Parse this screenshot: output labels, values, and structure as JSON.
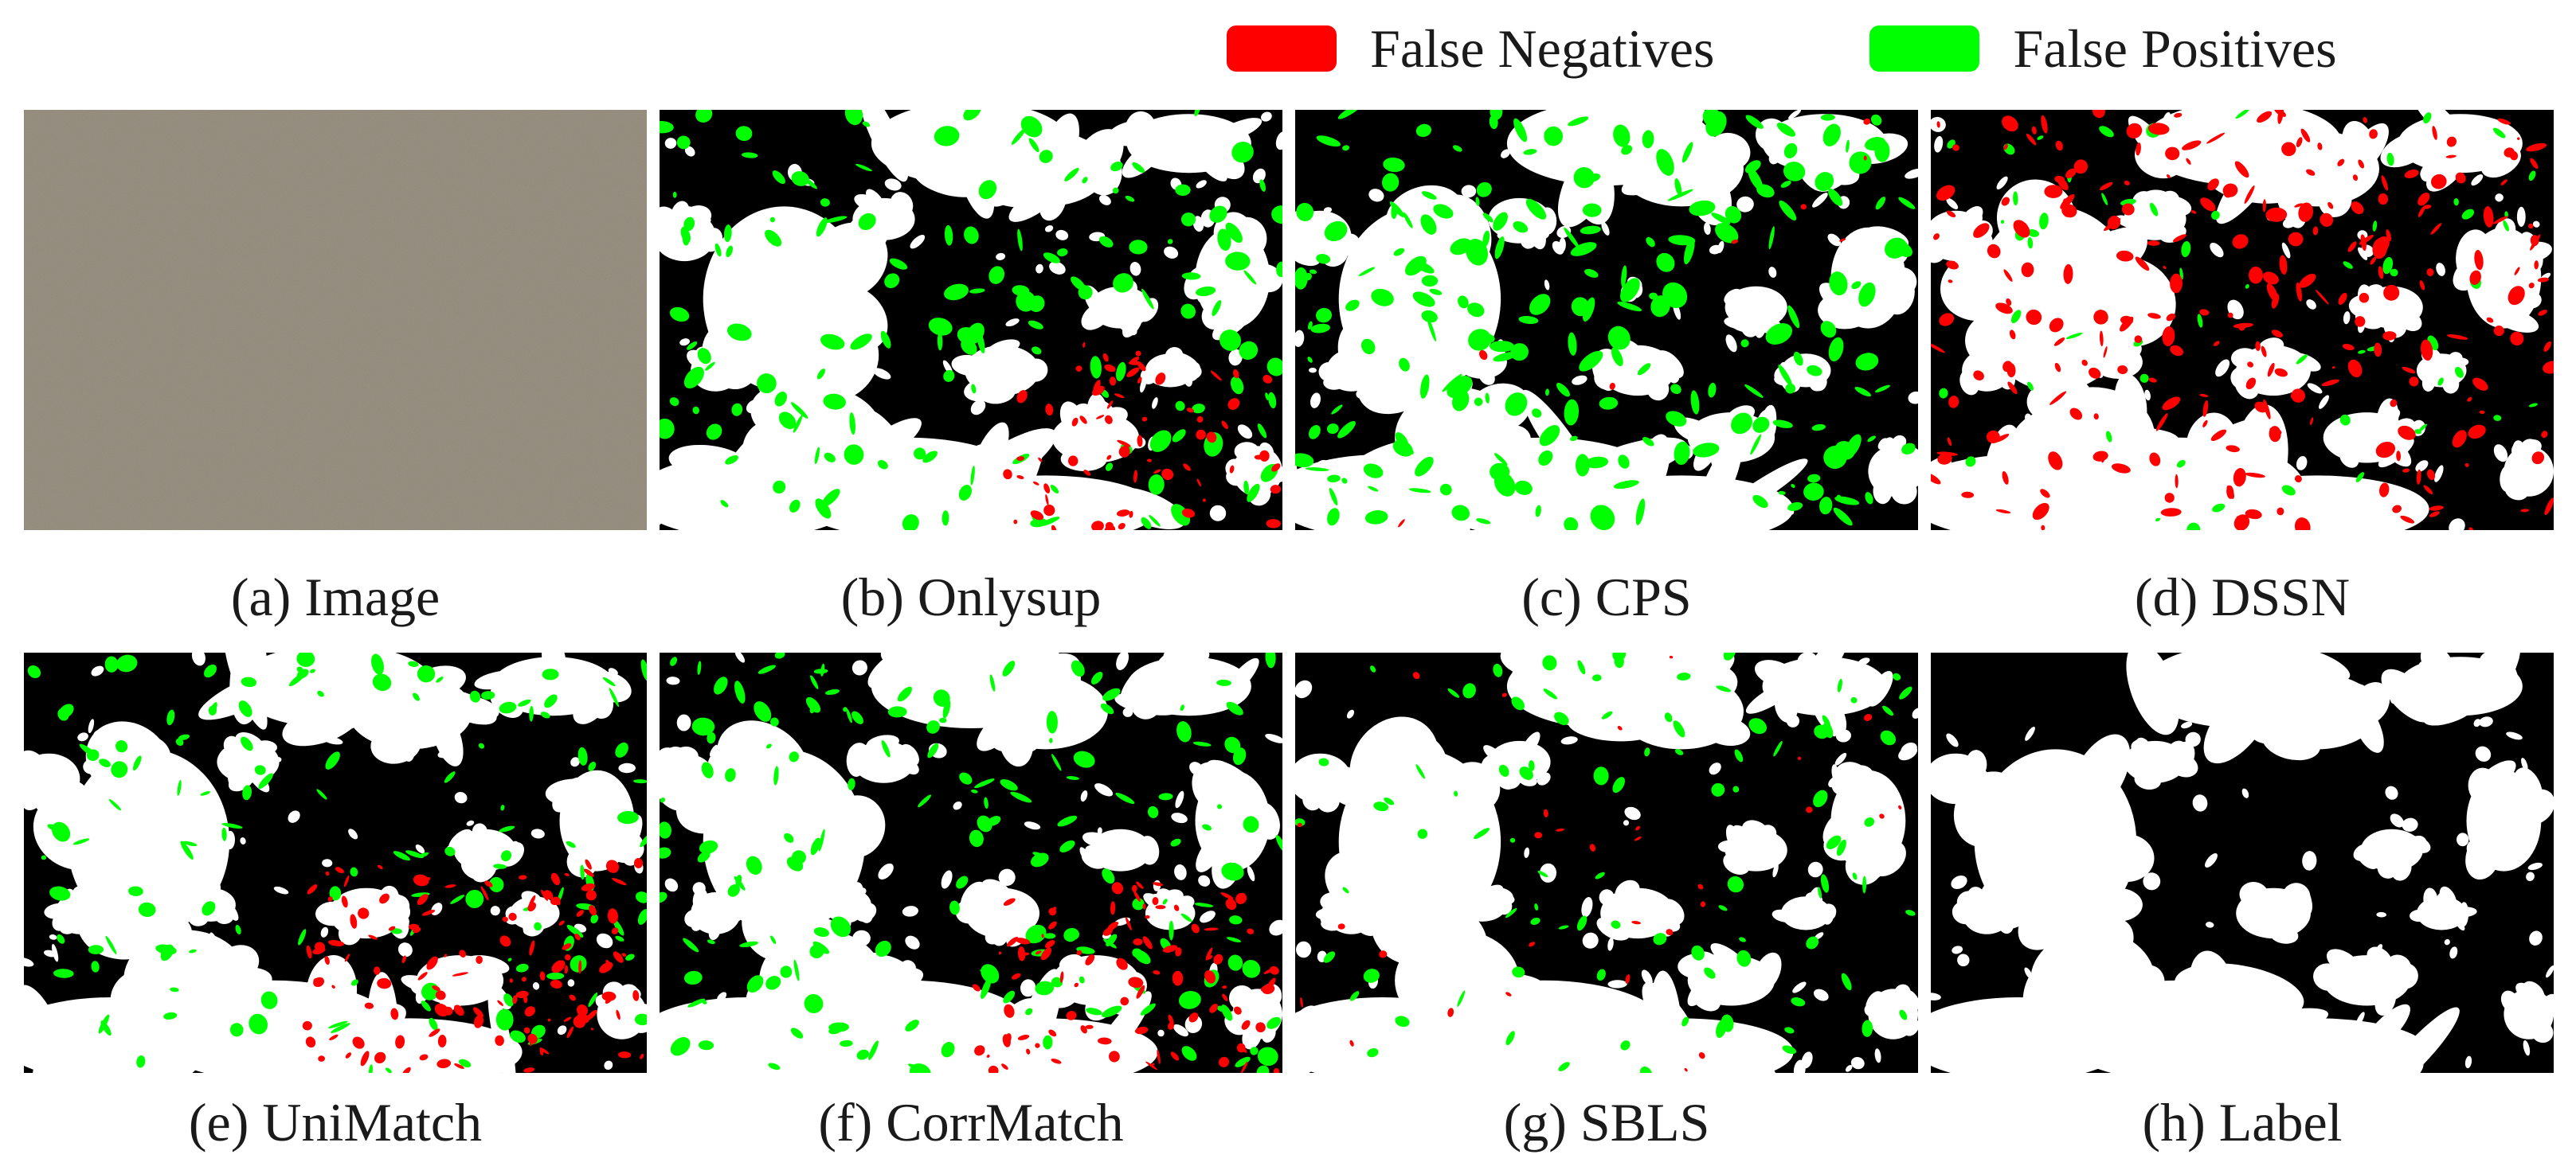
{
  "legend": {
    "items": [
      {
        "label": "False Negatives",
        "color": "#ff0000"
      },
      {
        "label": "False Positives",
        "color": "#00ff00"
      }
    ]
  },
  "colors": {
    "foreground": "#000000",
    "background": "#ffffff",
    "false_negative": "#ff0000",
    "false_positive": "#00ff00"
  },
  "panels": [
    {
      "id": "a",
      "caption": "(a) Image",
      "kind": "photo"
    },
    {
      "id": "b",
      "caption": "(b) Onlysup",
      "kind": "mask"
    },
    {
      "id": "c",
      "caption": "(c) CPS",
      "kind": "mask"
    },
    {
      "id": "d",
      "caption": "(d) DSSN",
      "kind": "mask"
    },
    {
      "id": "e",
      "caption": "(e) UniMatch",
      "kind": "mask"
    },
    {
      "id": "f",
      "caption": "(f) CorrMatch",
      "kind": "mask"
    },
    {
      "id": "g",
      "caption": "(g) SBLS",
      "kind": "mask"
    },
    {
      "id": "h",
      "caption": "(h) Label",
      "kind": "label"
    }
  ]
}
